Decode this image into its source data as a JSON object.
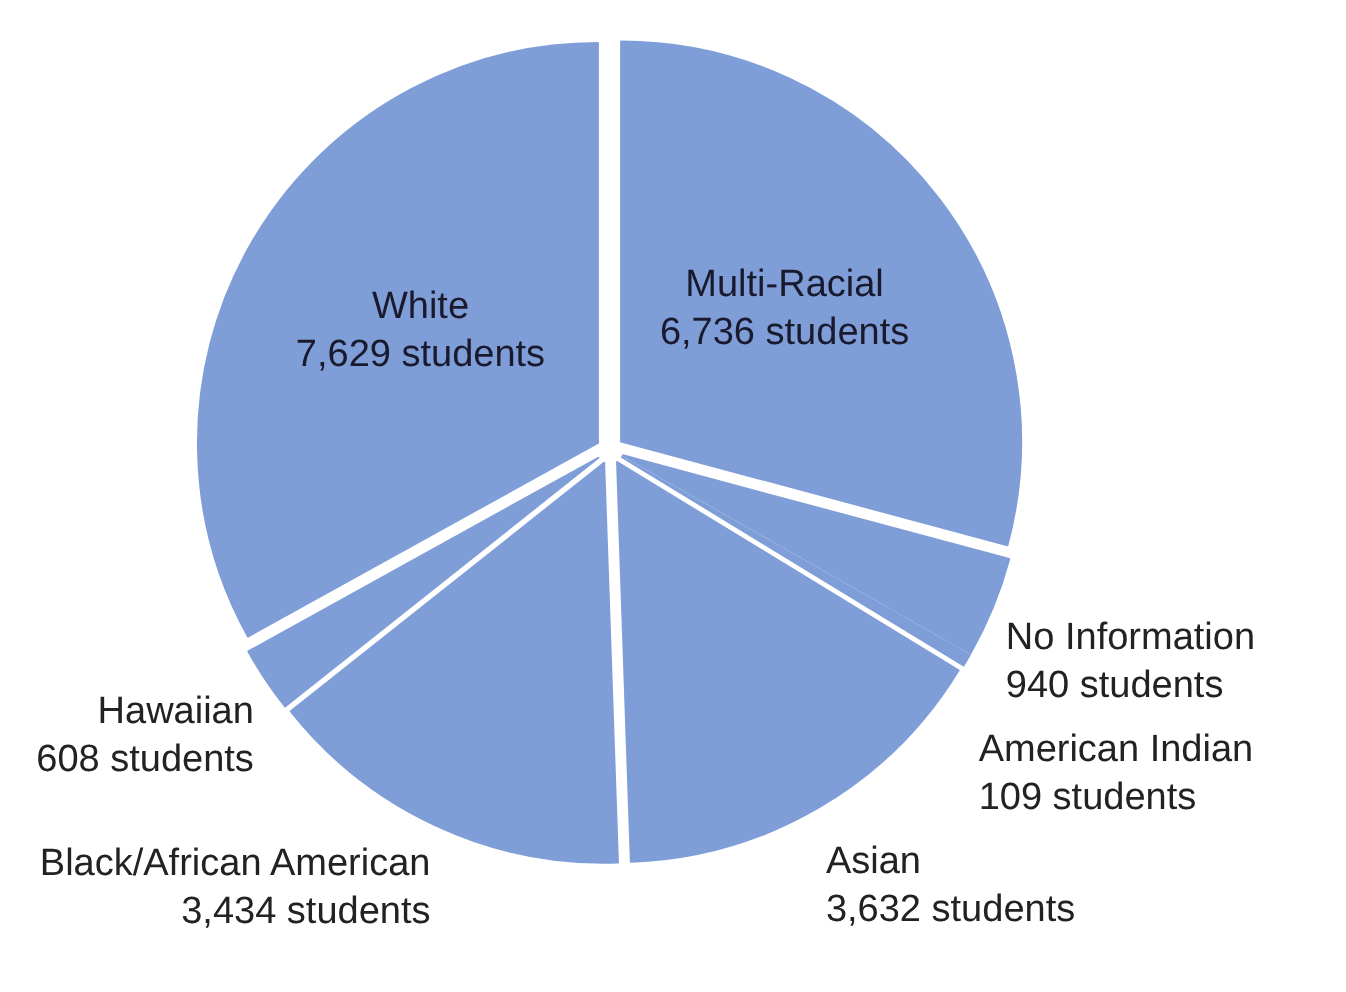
{
  "chart_data": {
    "type": "pie",
    "categories": [
      "Multi-Racial",
      "No Information",
      "American Indian",
      "Asian",
      "Black/African American",
      "Hawaiian",
      "White"
    ],
    "values": [
      6736,
      940,
      109,
      3632,
      3434,
      608,
      7629
    ],
    "value_labels": [
      "6,736 students",
      "940 students",
      "109 students",
      "3,632 students",
      "3,434 students",
      "608 students",
      "7,629 students"
    ],
    "colors": [
      "#7f9ed8",
      "#7f9ed8",
      "#7f9ed8",
      "#7f9ed8",
      "#7f9ed8",
      "#7f9ed8",
      "#7f9ed8"
    ]
  }
}
